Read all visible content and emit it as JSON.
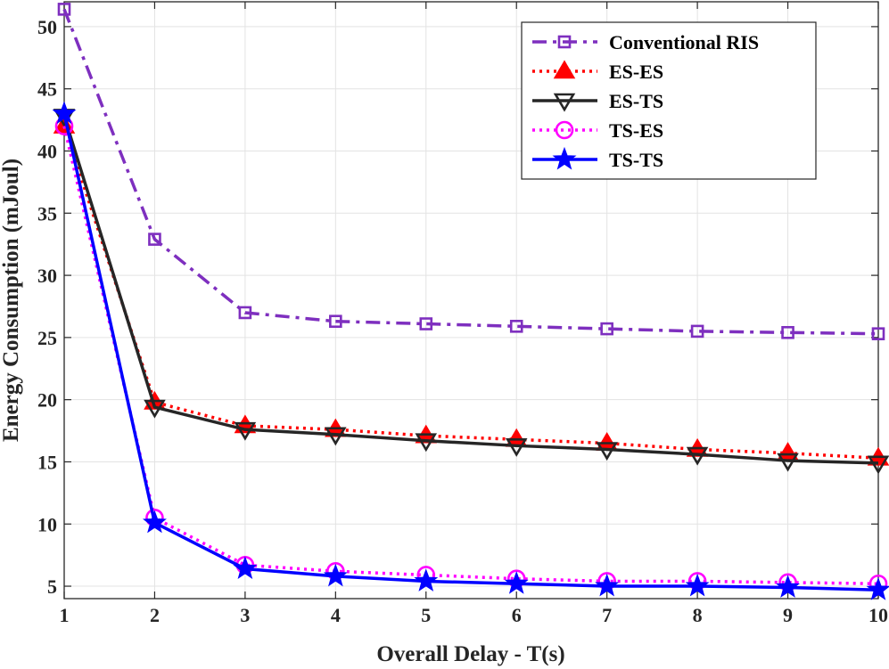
{
  "chart_data": {
    "type": "line",
    "title": "",
    "xlabel": "Overall Delay - T(s)",
    "ylabel": "Energy Consumption (mJoul)",
    "x": [
      1,
      2,
      3,
      4,
      5,
      6,
      7,
      8,
      9,
      10
    ],
    "xlim": [
      1,
      10
    ],
    "ylim": [
      4,
      52
    ],
    "xticks": [
      "1",
      "2",
      "3",
      "4",
      "5",
      "6",
      "7",
      "8",
      "9",
      "10"
    ],
    "yticks": [
      "5",
      "10",
      "15",
      "20",
      "25",
      "30",
      "35",
      "40",
      "45",
      "50"
    ],
    "grid": true,
    "legend_position": "top-right",
    "series": [
      {
        "name": "Conventional RIS",
        "color": "#7e2fbf",
        "line_style": "dash-dot",
        "marker": "square",
        "marker_fill": "none",
        "values": [
          51.4,
          32.9,
          27.0,
          26.3,
          26.1,
          25.9,
          25.7,
          25.5,
          25.4,
          25.3
        ]
      },
      {
        "name": "ES-ES",
        "color": "#ff0000",
        "line_style": "dotted",
        "marker": "triangle-up",
        "marker_fill": "#ff0000",
        "values": [
          42.0,
          19.8,
          17.9,
          17.6,
          17.1,
          16.8,
          16.5,
          16.0,
          15.7,
          15.3
        ]
      },
      {
        "name": "ES-TS",
        "color": "#262626",
        "line_style": "solid",
        "marker": "triangle-down",
        "marker_fill": "none",
        "values": [
          42.8,
          19.4,
          17.6,
          17.2,
          16.7,
          16.3,
          16.0,
          15.6,
          15.1,
          14.9
        ]
      },
      {
        "name": "TS-ES",
        "color": "#ff00ff",
        "line_style": "dotted",
        "marker": "circle",
        "marker_fill": "none",
        "values": [
          42.0,
          10.5,
          6.7,
          6.2,
          5.9,
          5.6,
          5.4,
          5.4,
          5.3,
          5.2
        ]
      },
      {
        "name": "TS-TS",
        "color": "#0000ff",
        "line_style": "solid",
        "marker": "star",
        "marker_fill": "#0000ff",
        "values": [
          43.0,
          10.1,
          6.4,
          5.8,
          5.4,
          5.2,
          5.0,
          5.0,
          4.9,
          4.7
        ]
      }
    ]
  }
}
